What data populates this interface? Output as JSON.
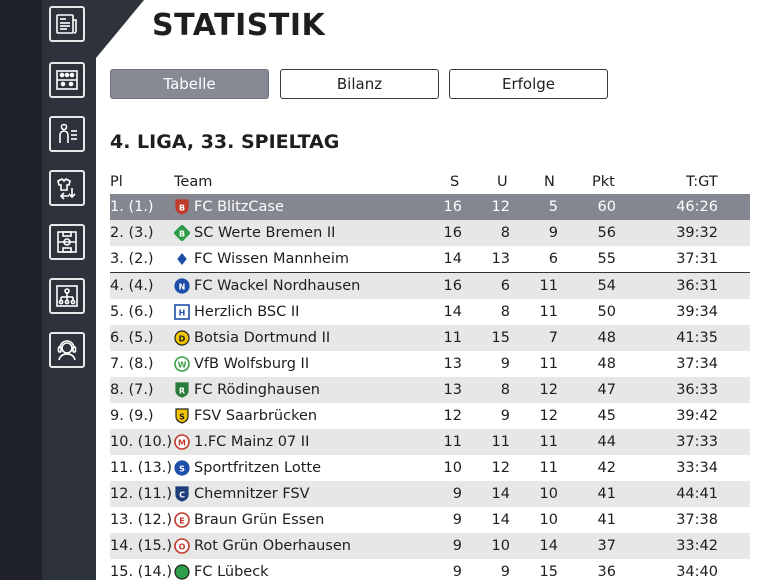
{
  "page": {
    "title": "STATISTIK",
    "subtitle": "4. LIGA, 33. SPIELTAG"
  },
  "tabs": [
    {
      "label": "Tabelle",
      "active": true
    },
    {
      "label": "Bilanz",
      "active": false
    },
    {
      "label": "Erfolge",
      "active": false
    }
  ],
  "nav": [
    {
      "icon": "news-icon"
    },
    {
      "icon": "lineup-icon"
    },
    {
      "icon": "player-stats-icon"
    },
    {
      "icon": "transfer-icon"
    },
    {
      "icon": "pitch-icon"
    },
    {
      "icon": "organization-icon"
    },
    {
      "icon": "support-icon"
    }
  ],
  "table": {
    "headers": {
      "pl": "Pl",
      "team": "Team",
      "s": "S",
      "u": "U",
      "n": "N",
      "pkt": "Pkt",
      "tgt": "T:GT"
    },
    "rows": [
      {
        "pl": "1. (1.)",
        "team": "FC BlitzCase",
        "s": "16",
        "u": "12",
        "n": "5",
        "pkt": "60",
        "tgt": "46:26",
        "logo_color": "#c0392b",
        "logo_letter": "B",
        "logo_shape": "shield"
      },
      {
        "pl": "2. (3.)",
        "team": "SC Werte Bremen II",
        "s": "16",
        "u": "8",
        "n": "9",
        "pkt": "56",
        "tgt": "39:32",
        "logo_color": "#2e9e4a",
        "logo_letter": "B",
        "logo_shape": "diamond"
      },
      {
        "pl": "3. (2.)",
        "team": "FC Wissen Mannheim",
        "s": "14",
        "u": "13",
        "n": "6",
        "pkt": "55",
        "tgt": "37:31",
        "logo_color": "#1f4fa8",
        "logo_letter": "",
        "logo_shape": "small"
      },
      {
        "pl": "4. (4.)",
        "team": "FC Wackel Nordhausen",
        "s": "16",
        "u": "6",
        "n": "11",
        "pkt": "54",
        "tgt": "36:31",
        "logo_color": "#1f4fa8",
        "logo_letter": "N",
        "logo_shape": "circle"
      },
      {
        "pl": "5. (6.)",
        "team": "Herzlich BSC II",
        "s": "14",
        "u": "8",
        "n": "11",
        "pkt": "50",
        "tgt": "39:34",
        "logo_color": "#1f4fa8",
        "logo_letter": "H",
        "logo_shape": "square"
      },
      {
        "pl": "6. (5.)",
        "team": "Botsia Dortmund II",
        "s": "11",
        "u": "15",
        "n": "7",
        "pkt": "48",
        "tgt": "41:35",
        "logo_color": "#f2c400",
        "logo_letter": "D",
        "logo_shape": "circle-dark"
      },
      {
        "pl": "7. (8.)",
        "team": "VfB Wolfsburg II",
        "s": "13",
        "u": "9",
        "n": "11",
        "pkt": "48",
        "tgt": "37:34",
        "logo_color": "#3aa043",
        "logo_letter": "W",
        "logo_shape": "ring"
      },
      {
        "pl": "8. (7.)",
        "team": "FC Rödinghausen",
        "s": "13",
        "u": "8",
        "n": "12",
        "pkt": "47",
        "tgt": "36:33",
        "logo_color": "#2a7a3a",
        "logo_letter": "R",
        "logo_shape": "shield"
      },
      {
        "pl": "9. (9.)",
        "team": "FSV Saarbrücken",
        "s": "12",
        "u": "9",
        "n": "12",
        "pkt": "45",
        "tgt": "39:42",
        "logo_color": "#f2c400",
        "logo_letter": "S",
        "logo_shape": "shield-dark"
      },
      {
        "pl": "10. (10.)",
        "team": "1.FC Mainz 07 II",
        "s": "11",
        "u": "11",
        "n": "11",
        "pkt": "44",
        "tgt": "37:33",
        "logo_color": "#c0392b",
        "logo_letter": "M",
        "logo_shape": "ring"
      },
      {
        "pl": "11. (13.)",
        "team": "Sportfritzen Lotte",
        "s": "10",
        "u": "12",
        "n": "11",
        "pkt": "42",
        "tgt": "33:34",
        "logo_color": "#1f4fa8",
        "logo_letter": "S",
        "logo_shape": "circle"
      },
      {
        "pl": "12. (11.)",
        "team": "Chemnitzer FSV",
        "s": "9",
        "u": "14",
        "n": "10",
        "pkt": "41",
        "tgt": "44:41",
        "logo_color": "#1f3d7a",
        "logo_letter": "C",
        "logo_shape": "shield"
      },
      {
        "pl": "13. (12.)",
        "team": "Braun Grün Essen",
        "s": "9",
        "u": "14",
        "n": "10",
        "pkt": "41",
        "tgt": "37:38",
        "logo_color": "#c0392b",
        "logo_letter": "E",
        "logo_shape": "ring"
      },
      {
        "pl": "14. (15.)",
        "team": "Rot Grün Oberhausen",
        "s": "9",
        "u": "10",
        "n": "14",
        "pkt": "37",
        "tgt": "33:42",
        "logo_color": "#c0392b",
        "logo_letter": "O",
        "logo_shape": "ring"
      },
      {
        "pl": "15. (14.)",
        "team": "FC Lübeck",
        "s": "9",
        "u": "9",
        "n": "15",
        "pkt": "36",
        "tgt": "34:40",
        "logo_color": "#2e9e4a",
        "logo_letter": "",
        "logo_shape": "circle-dark"
      }
    ]
  },
  "colors": {
    "sidebar": "#1f2229",
    "nav": "#2d323b",
    "active_tab": "#858a94",
    "highlight_row": "#84878f",
    "alt_row": "#e7e7e7"
  }
}
